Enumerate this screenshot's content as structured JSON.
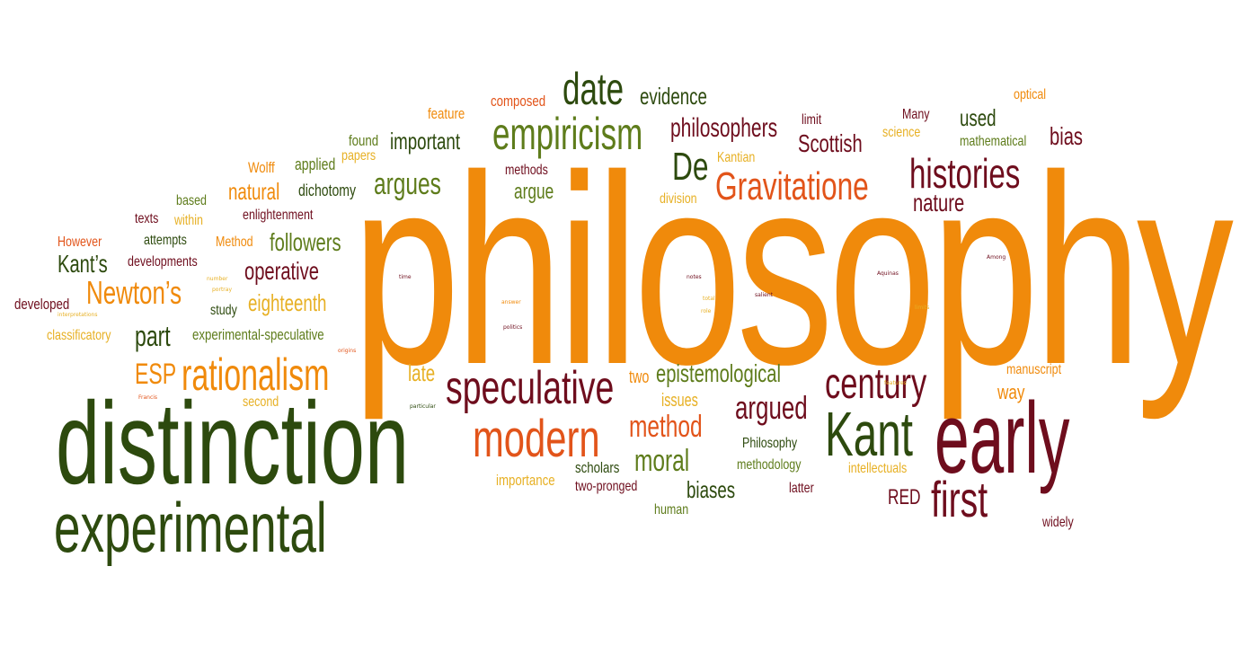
{
  "colors": {
    "orange": "#f08a0b",
    "red": "#e2541a",
    "maroon": "#6e0d1d",
    "olive": "#5e7c1b",
    "dark_green": "#2d4a0e",
    "gold": "#e7b024",
    "background": "#ffffff"
  },
  "words": {
    "philosophy": "philosophy",
    "distinction": "distinction",
    "experimental": "experimental",
    "early": "early",
    "kant": "Kant",
    "first": "first",
    "modern": "modern",
    "speculative": "speculative",
    "rationalism": "rationalism",
    "empiricism": "empiricism",
    "date": "date",
    "evidence": "evidence",
    "composed": "composed",
    "feature": "feature",
    "philosophers": "philosophers",
    "histories": "histories",
    "gravitatione": "Gravitatione",
    "de": "De",
    "argues": "argues",
    "argue": "argue",
    "important": "important",
    "found": "found",
    "papers": "papers",
    "applied": "applied",
    "wolff": "Wolff",
    "natural": "natural",
    "dichotomy": "dichotomy",
    "methods": "methods",
    "kantian": "Kantian",
    "division": "division",
    "limit": "limit",
    "scottish": "Scottish",
    "many": "Many",
    "science": "science",
    "used": "used",
    "mathematical": "mathematical",
    "bias": "bias",
    "optical": "optical",
    "nature": "nature",
    "based": "based",
    "within": "within",
    "texts": "texts",
    "enlightenment": "enlightenment",
    "however": "However",
    "attempts": "attempts",
    "method_small": "Method",
    "followers": "followers",
    "kants": "Kant’s",
    "developments": "developments",
    "operative": "operative",
    "newtons": "Newton’s",
    "developed": "developed",
    "eighteenth": "eighteenth",
    "study": "study",
    "classificatory": "classificatory",
    "part": "part",
    "experimental_speculative": "experimental-speculative",
    "esp": "ESP",
    "second": "second",
    "late": "late",
    "two": "two",
    "epistemological": "epistemological",
    "issues": "issues",
    "century": "century",
    "argued": "argued",
    "method": "method",
    "moral": "moral",
    "philosophy_cap": "Philosophy",
    "methodology": "methodology",
    "scholars": "scholars",
    "importance": "importance",
    "two_pronged": "two-pronged",
    "biases": "biases",
    "human": "human",
    "latter": "latter",
    "intellectuals": "intellectuals",
    "red": "RED",
    "manuscript": "manuscript",
    "way": "way",
    "widely": "widely",
    "tiny_time": "time",
    "tiny_number": "number",
    "tiny_portray": "portray",
    "tiny_interpretations": "interpretations",
    "tiny_origins": "origins",
    "tiny_francis": "Francis",
    "tiny_particular": "particular",
    "tiny_answer": "answer",
    "tiny_politics": "politics",
    "tiny_notes": "notes",
    "tiny_total": "total",
    "tiny_role": "role",
    "tiny_salient": "salient",
    "tiny_aquinas": "Aquinas",
    "tiny_limits": "limits",
    "tiny_among": "Among",
    "tiny_features": "features"
  }
}
